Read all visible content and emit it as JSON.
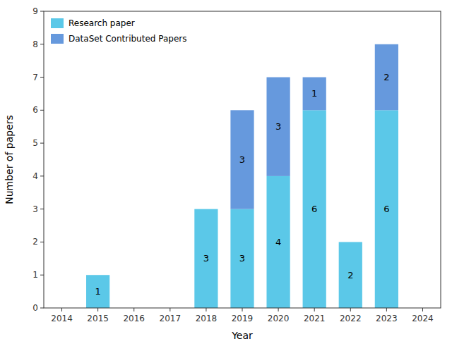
{
  "chart_data": {
    "type": "bar",
    "stacked": true,
    "x": [
      2015,
      2018,
      2019,
      2020,
      2021,
      2022,
      2023
    ],
    "series": [
      {
        "name": "Research paper",
        "color": "#5BC8E8",
        "values": [
          1,
          3,
          3,
          4,
          6,
          2,
          6
        ]
      },
      {
        "name": "DataSet Contributed Papers",
        "color": "#6699DD",
        "values": [
          0,
          0,
          3,
          3,
          1,
          0,
          2
        ]
      }
    ],
    "xlabel": "Year",
    "ylabel": "Number of papers",
    "xlim": [
      2013.5,
      2024.5
    ],
    "xticks": [
      2014,
      2015,
      2016,
      2017,
      2018,
      2019,
      2020,
      2021,
      2022,
      2023,
      2024
    ],
    "ylim": [
      0,
      9
    ],
    "yticks": [
      0,
      1,
      2,
      3,
      4,
      5,
      6,
      7,
      8,
      9
    ],
    "grid": false,
    "legend": "upper left",
    "data_labels": true
  }
}
